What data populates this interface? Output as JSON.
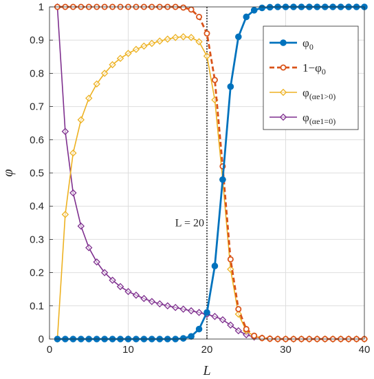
{
  "chart_data": {
    "type": "line",
    "title": "",
    "xlabel": "L",
    "ylabel": "φ",
    "xlim": [
      0,
      40
    ],
    "ylim": [
      0,
      1
    ],
    "xticks": [
      "0",
      "10",
      "20",
      "30",
      "40"
    ],
    "yticks": [
      "0",
      "0.1",
      "0.2",
      "0.3",
      "0.4",
      "0.5",
      "0.6",
      "0.7",
      "0.8",
      "0.9",
      "1"
    ],
    "grid": true,
    "legend_position": "top-right",
    "annotation": {
      "text": "L = 20",
      "x": 20
    },
    "x": [
      1,
      2,
      3,
      4,
      5,
      6,
      7,
      8,
      9,
      10,
      11,
      12,
      13,
      14,
      15,
      16,
      17,
      18,
      19,
      20,
      21,
      22,
      23,
      24,
      25,
      26,
      27,
      28,
      29,
      30,
      31,
      32,
      33,
      34,
      35,
      36,
      37,
      38,
      39,
      40
    ],
    "series": [
      {
        "name": "φ0",
        "color": "#0072BD",
        "marker": "circle",
        "line": "solid",
        "values": [
          0,
          0,
          0,
          0,
          0,
          0,
          0,
          0,
          0,
          0,
          0,
          0,
          0,
          0,
          0,
          0,
          0.002,
          0.008,
          0.03,
          0.08,
          0.22,
          0.48,
          0.76,
          0.91,
          0.97,
          0.99,
          0.997,
          0.999,
          1,
          1,
          1,
          1,
          1,
          1,
          1,
          1,
          1,
          1,
          1,
          1
        ]
      },
      {
        "name": "1−φ0",
        "color": "#D95319",
        "marker": "circle-open",
        "line": "dashed",
        "values": [
          1,
          1,
          1,
          1,
          1,
          1,
          1,
          1,
          1,
          1,
          1,
          1,
          1,
          1,
          1,
          1,
          0.998,
          0.992,
          0.97,
          0.92,
          0.78,
          0.52,
          0.24,
          0.09,
          0.03,
          0.01,
          0.003,
          0.001,
          0,
          0,
          0,
          0,
          0,
          0,
          0,
          0,
          0,
          0,
          0,
          0
        ]
      },
      {
        "name": "φ(αe1>0)",
        "color": "#EDB120",
        "marker": "diamond",
        "line": "solid",
        "values": [
          0,
          0.375,
          0.56,
          0.66,
          0.725,
          0.768,
          0.8,
          0.826,
          0.845,
          0.86,
          0.872,
          0.882,
          0.89,
          0.897,
          0.903,
          0.908,
          0.91,
          0.908,
          0.895,
          0.852,
          0.72,
          0.48,
          0.21,
          0.075,
          0.025,
          0.008,
          0.003,
          0.001,
          0,
          0,
          0,
          0,
          0,
          0,
          0,
          0,
          0,
          0,
          0,
          0
        ]
      },
      {
        "name": "φ(αe1=0)",
        "color": "#7E2F8E",
        "marker": "diamond",
        "line": "solid",
        "values": [
          1,
          0.625,
          0.44,
          0.34,
          0.275,
          0.232,
          0.2,
          0.177,
          0.158,
          0.143,
          0.132,
          0.122,
          0.113,
          0.106,
          0.1,
          0.095,
          0.09,
          0.085,
          0.08,
          0.074,
          0.068,
          0.058,
          0.042,
          0.025,
          0.013,
          0.006,
          0.003,
          0.001,
          0,
          0,
          0,
          0,
          0,
          0,
          0,
          0,
          0,
          0,
          0,
          0
        ]
      }
    ]
  }
}
